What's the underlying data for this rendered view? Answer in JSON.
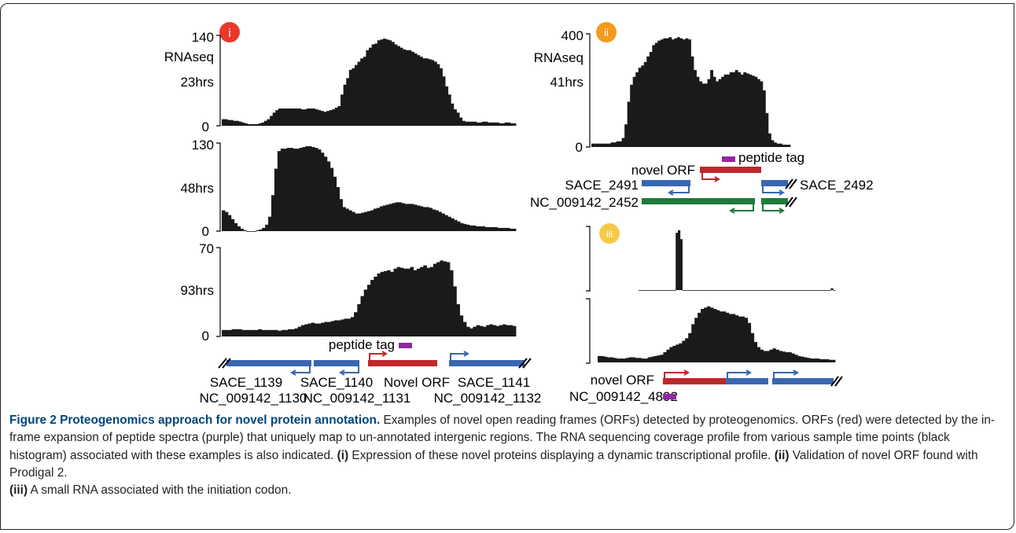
{
  "figure": {
    "panel_i": {
      "badge": "i",
      "badge_color": "#e8392b",
      "ylabel_lines": [
        "RNAseq",
        "23hrs"
      ],
      "tracks": [
        {
          "max": "140",
          "zero": "0",
          "time": "",
          "profile": [
            8,
            8,
            7,
            7,
            6,
            6,
            5,
            4,
            3,
            2,
            2,
            2,
            2,
            3,
            4,
            6,
            8,
            12,
            16,
            19,
            21,
            21,
            21,
            21,
            21,
            21,
            21,
            21,
            20,
            20,
            21,
            21,
            21,
            20,
            19,
            18,
            17,
            18,
            19,
            20,
            22,
            24,
            38,
            50,
            58,
            68,
            70,
            74,
            78,
            82,
            84,
            92,
            95,
            99,
            100,
            104,
            105,
            106,
            105,
            104,
            102,
            99,
            97,
            95,
            93,
            92,
            92,
            90,
            88,
            86,
            84,
            82,
            82,
            81,
            80,
            78,
            75,
            70,
            60,
            48,
            38,
            27,
            20,
            16,
            10,
            6,
            5,
            5,
            5,
            5,
            4,
            4,
            5,
            5,
            4,
            4,
            4,
            4,
            3,
            3,
            4,
            4,
            3,
            3
          ]
        },
        {
          "max": "130",
          "zero": "0",
          "time": "48hrs",
          "profile": [
            26,
            24,
            20,
            15,
            10,
            6,
            3,
            1,
            0,
            0,
            0,
            1,
            2,
            4,
            8,
            18,
            45,
            78,
            100,
            103,
            103,
            104,
            104,
            103,
            103,
            104,
            105,
            106,
            106,
            105,
            104,
            102,
            98,
            93,
            87,
            79,
            68,
            55,
            40,
            30,
            28,
            26,
            24,
            22,
            22,
            23,
            24,
            25,
            26,
            28,
            29,
            31,
            32,
            33,
            34,
            35,
            36,
            36,
            35,
            34,
            34,
            34,
            33,
            32,
            31,
            30,
            30,
            29,
            27,
            26,
            24,
            22,
            20,
            18,
            16,
            14,
            12,
            10,
            9,
            8,
            7,
            7,
            6,
            6,
            6,
            5,
            5,
            5,
            5,
            4,
            4,
            4,
            4,
            3,
            3
          ]
        },
        {
          "max": "70",
          "zero": "0",
          "time": "93hrs",
          "profile": [
            8,
            8,
            8,
            9,
            9,
            9,
            8,
            8,
            8,
            8,
            8,
            9,
            8,
            8,
            8,
            8,
            8,
            7,
            8,
            8,
            9,
            9,
            10,
            12,
            14,
            15,
            16,
            17,
            16,
            16,
            17,
            18,
            18,
            19,
            20,
            20,
            21,
            22,
            22,
            24,
            30,
            40,
            50,
            58,
            64,
            70,
            74,
            78,
            80,
            81,
            82,
            80,
            84,
            86,
            85,
            84,
            84,
            86,
            82,
            84,
            86,
            88,
            85,
            86,
            90,
            92,
            94,
            93,
            92,
            82,
            62,
            40,
            26,
            18,
            12,
            10,
            12,
            14,
            13,
            12,
            14,
            15,
            14,
            13,
            14,
            15,
            14,
            14,
            13
          ]
        }
      ],
      "genes": {
        "names": [
          "SACE_1139",
          "SACE_1140",
          "Novel ORF",
          "SACE_1141"
        ],
        "ncbi": [
          "NC_009142_1130",
          "NC_009142_1131",
          "NC_009142_1132"
        ],
        "tag_label": "peptide tag"
      }
    },
    "panel_ii": {
      "badge": "ii",
      "badge_color": "#f39b1c",
      "ylabel_lines": [
        "RNAseq",
        "41hrs"
      ],
      "max": "400",
      "zero": "0",
      "profile": [
        3,
        3,
        3,
        3,
        3,
        3,
        3,
        4,
        4,
        5,
        5,
        8,
        20,
        40,
        55,
        62,
        66,
        70,
        72,
        75,
        80,
        84,
        90,
        92,
        94,
        95,
        96,
        96,
        97,
        95,
        96,
        97,
        96,
        95,
        96,
        95,
        80,
        68,
        62,
        58,
        56,
        56,
        60,
        68,
        62,
        58,
        60,
        62,
        64,
        64,
        66,
        66,
        68,
        66,
        64,
        66,
        65,
        64,
        63,
        62,
        60,
        58,
        50,
        30,
        12,
        6,
        4,
        3,
        3,
        2,
        2,
        2
      ],
      "tag_label": "peptide tag",
      "novel_label": "novel ORF",
      "gene_left": "SACE_2491",
      "gene_right": "SACE_2492",
      "ncbi": "NC_009142_2452"
    },
    "panel_iii": {
      "badge": "iii",
      "badge_color": "#f7c948",
      "top_profile": [
        0,
        0,
        0,
        0,
        0,
        0,
        0,
        0,
        0,
        0,
        0,
        0,
        0,
        0,
        0,
        0,
        0,
        90,
        94,
        80,
        0,
        0,
        0,
        0,
        0,
        0,
        0,
        0,
        0,
        0,
        0,
        0,
        0,
        0,
        0,
        0,
        0,
        0,
        0,
        0,
        0,
        0,
        0,
        0,
        0,
        0,
        0,
        0,
        0,
        0,
        0,
        0,
        0,
        0,
        0,
        0,
        0,
        0,
        0,
        0,
        0,
        0,
        0,
        0,
        0,
        0,
        0,
        0,
        0,
        0,
        0,
        0,
        0,
        0,
        0,
        0,
        0,
        0,
        0,
        0,
        0,
        0,
        0,
        0,
        0,
        0,
        0,
        0,
        3,
        0
      ],
      "bottom_profile": [
        10,
        10,
        9,
        8,
        8,
        7,
        6,
        6,
        6,
        7,
        8,
        8,
        7,
        7,
        6,
        6,
        8,
        9,
        10,
        11,
        12,
        16,
        20,
        24,
        26,
        28,
        30,
        34,
        38,
        46,
        60,
        70,
        78,
        84,
        86,
        88,
        86,
        84,
        82,
        80,
        80,
        78,
        76,
        76,
        74,
        72,
        72,
        70,
        62,
        46,
        32,
        24,
        20,
        18,
        18,
        20,
        22,
        20,
        18,
        17,
        16,
        16,
        14,
        12,
        10,
        9,
        8,
        7,
        6,
        6,
        6,
        5,
        5,
        5,
        4,
        4
      ],
      "novel_label": "novel ORF",
      "ncbi": "NC_009142_4892"
    },
    "colors": {
      "orf": "#c0272d",
      "gene": "#3a66b0",
      "ncbi_gene": "#1f7a3c",
      "tag": "#9127a0",
      "histogram": "#1a1a1a"
    }
  },
  "caption": {
    "title": "Figure 2 Proteogenomics approach for novel protein annotation.",
    "body": " Examples of novel open reading frames (ORFs) detected by proteogenomics. ORFs (red) were detected by the in-frame expansion of peptide spectra (purple) that uniquely map to un-annotated intergenic regions. The RNA sequencing coverage profile from various sample time points (black histogram) associated with these examples is also indicated.",
    "i_label": "(i)",
    "i_text": " Expression of these novel proteins displaying a dynamic transcriptional profile.",
    "ii_label": "(ii)",
    "ii_text": " Validation of novel ORF found with Prodigal 2.",
    "iii_label": "(iii)",
    "iii_text": " A small RNA associated with the initiation codon."
  }
}
